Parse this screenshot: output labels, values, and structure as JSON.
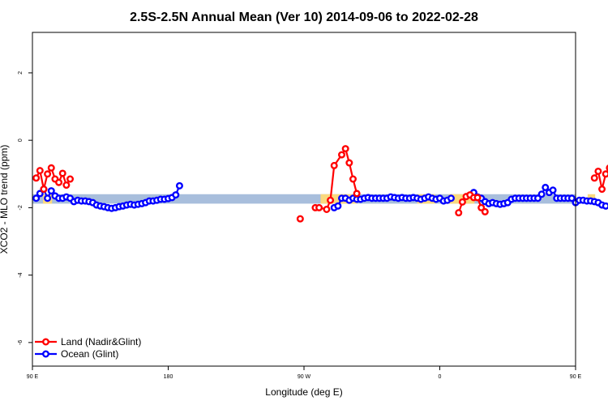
{
  "chart_data": {
    "type": "scatter",
    "title": "2.5S-2.5N Annual Mean (Ver 10)   2014-09-06 to 2022-02-28",
    "xlabel": "Longitude (deg E)",
    "ylabel": "XCO2 - MLO trend (ppm)",
    "xlim": [
      90,
      450
    ],
    "ylim": [
      -6.7,
      3.2
    ],
    "x_ticks": [
      {
        "value": 90,
        "label": "90 E"
      },
      {
        "value": 180,
        "label": "180"
      },
      {
        "value": 270,
        "label": "90 W"
      },
      {
        "value": 360,
        "label": "0"
      },
      {
        "value": 450,
        "label": "90 E"
      },
      {
        "value": 540,
        "label": "180"
      }
    ],
    "y_ticks": [
      {
        "value": 2,
        "label": "2"
      },
      {
        "value": 0,
        "label": "0"
      },
      {
        "value": -2,
        "label": "-2"
      },
      {
        "value": -4,
        "label": "-4"
      },
      {
        "value": -6,
        "label": "-6"
      }
    ],
    "band": {
      "ymin": -1.88,
      "ymax": -1.6,
      "ocean_color": "#a8bedc",
      "land_color": "#fad97e",
      "land_segments": [
        [
          97,
          103
        ],
        [
          281,
          305
        ],
        [
          345,
          357
        ],
        [
          366,
          383
        ],
        [
          458,
          463
        ]
      ]
    },
    "series": [
      {
        "name": "Land (Nadir&Glint)",
        "color": "#ff0000",
        "segments": [
          [
            [
              92.5,
              -1.12
            ],
            [
              95,
              -0.9
            ],
            [
              97.5,
              -1.45
            ],
            [
              100,
              -1.0
            ],
            [
              102.5,
              -0.82
            ],
            [
              105,
              -1.15
            ],
            [
              107.5,
              -1.25
            ],
            [
              110,
              -0.98
            ],
            [
              112.5,
              -1.33
            ],
            [
              115,
              -1.15
            ]
          ],
          [
            [
              267.5,
              -2.33
            ]
          ],
          [
            [
              277.5,
              -2.0
            ],
            [
              280,
              -2.0
            ],
            [
              285,
              -2.05
            ],
            [
              287.5,
              -1.78
            ],
            [
              290,
              -0.75
            ],
            [
              295,
              -0.43
            ],
            [
              297.5,
              -0.25
            ],
            [
              300,
              -0.67
            ],
            [
              302.5,
              -1.15
            ],
            [
              305,
              -1.58
            ]
          ],
          [
            [
              372.5,
              -2.15
            ],
            [
              375,
              -1.83
            ],
            [
              377.5,
              -1.67
            ],
            [
              380,
              -1.62
            ],
            [
              382.5,
              -1.7
            ],
            [
              385,
              -1.7
            ],
            [
              387.5,
              -2.0
            ],
            [
              390,
              -2.12
            ]
          ],
          [
            [
              462.5,
              -1.12
            ],
            [
              465,
              -0.92
            ],
            [
              467.5,
              -1.45
            ],
            [
              470,
              -1.0
            ],
            [
              472.5,
              -0.82
            ],
            [
              475,
              -1.15
            ],
            [
              477.5,
              -1.25
            ],
            [
              480,
              -0.98
            ],
            [
              482.5,
              -1.33
            ],
            [
              485,
              -1.15
            ]
          ]
        ]
      },
      {
        "name": "Ocean (Glint)",
        "color": "#0000ff",
        "segments": [
          [
            [
              92.5,
              -1.72
            ],
            [
              95,
              -1.58
            ],
            [
              97.5,
              -1.45
            ],
            [
              100,
              -1.72
            ],
            [
              102.5,
              -1.5
            ],
            [
              105,
              -1.65
            ],
            [
              107.5,
              -1.72
            ],
            [
              110,
              -1.72
            ],
            [
              112.5,
              -1.68
            ],
            [
              115,
              -1.72
            ],
            [
              117.5,
              -1.82
            ],
            [
              120,
              -1.78
            ],
            [
              122.5,
              -1.8
            ],
            [
              125,
              -1.8
            ],
            [
              127.5,
              -1.82
            ],
            [
              130,
              -1.85
            ],
            [
              132.5,
              -1.92
            ],
            [
              135,
              -1.95
            ],
            [
              137.5,
              -1.97
            ],
            [
              140,
              -2.0
            ],
            [
              142.5,
              -2.02
            ],
            [
              145,
              -2.0
            ],
            [
              147.5,
              -1.97
            ],
            [
              150,
              -1.95
            ],
            [
              152.5,
              -1.92
            ],
            [
              155,
              -1.9
            ],
            [
              157.5,
              -1.92
            ],
            [
              160,
              -1.9
            ],
            [
              162.5,
              -1.88
            ],
            [
              165,
              -1.85
            ],
            [
              167.5,
              -1.8
            ],
            [
              170,
              -1.8
            ],
            [
              172.5,
              -1.78
            ],
            [
              175,
              -1.75
            ],
            [
              177.5,
              -1.75
            ],
            [
              180,
              -1.73
            ],
            [
              182.5,
              -1.7
            ],
            [
              185,
              -1.62
            ],
            [
              187.5,
              -1.35
            ]
          ],
          [
            [
              290,
              -2.0
            ],
            [
              292.5,
              -1.95
            ],
            [
              295,
              -1.72
            ],
            [
              297.5,
              -1.72
            ],
            [
              300,
              -1.78
            ],
            [
              302.5,
              -1.72
            ],
            [
              305,
              -1.75
            ],
            [
              307.5,
              -1.75
            ],
            [
              310,
              -1.72
            ],
            [
              312.5,
              -1.7
            ],
            [
              315,
              -1.72
            ],
            [
              317.5,
              -1.72
            ],
            [
              320,
              -1.72
            ],
            [
              322.5,
              -1.72
            ],
            [
              325,
              -1.72
            ],
            [
              327.5,
              -1.68
            ],
            [
              330,
              -1.7
            ],
            [
              332.5,
              -1.72
            ],
            [
              335,
              -1.7
            ],
            [
              337.5,
              -1.72
            ],
            [
              340,
              -1.72
            ],
            [
              342.5,
              -1.7
            ],
            [
              345,
              -1.72
            ],
            [
              347.5,
              -1.75
            ],
            [
              350,
              -1.72
            ],
            [
              352.5,
              -1.68
            ],
            [
              355,
              -1.72
            ],
            [
              357.5,
              -1.75
            ],
            [
              360,
              -1.72
            ],
            [
              362.5,
              -1.8
            ],
            [
              365,
              -1.78
            ],
            [
              367.5,
              -1.72
            ]
          ],
          [
            [
              382.5,
              -1.55
            ],
            [
              385,
              -1.68
            ],
            [
              387.5,
              -1.72
            ],
            [
              390,
              -1.82
            ],
            [
              392.5,
              -1.88
            ],
            [
              395,
              -1.85
            ],
            [
              397.5,
              -1.88
            ],
            [
              400,
              -1.9
            ],
            [
              402.5,
              -1.88
            ],
            [
              405,
              -1.85
            ],
            [
              407.5,
              -1.75
            ],
            [
              410,
              -1.72
            ],
            [
              412.5,
              -1.72
            ],
            [
              415,
              -1.72
            ],
            [
              417.5,
              -1.72
            ],
            [
              420,
              -1.72
            ],
            [
              422.5,
              -1.72
            ],
            [
              425,
              -1.72
            ],
            [
              427.5,
              -1.6
            ],
            [
              430,
              -1.4
            ],
            [
              432.5,
              -1.55
            ],
            [
              435,
              -1.48
            ],
            [
              437.5,
              -1.72
            ],
            [
              440,
              -1.72
            ],
            [
              442.5,
              -1.72
            ],
            [
              445,
              -1.72
            ],
            [
              447.5,
              -1.72
            ],
            [
              450,
              -1.85
            ],
            [
              452.5,
              -1.78
            ],
            [
              455,
              -1.78
            ],
            [
              457.5,
              -1.8
            ],
            [
              460,
              -1.8
            ],
            [
              462.5,
              -1.82
            ],
            [
              465,
              -1.85
            ],
            [
              467.5,
              -1.92
            ],
            [
              470,
              -1.95
            ]
          ]
        ]
      }
    ],
    "legend": {
      "position": "bottom-left",
      "entries": [
        "Land (Nadir&Glint)",
        "Ocean (Glint)"
      ]
    }
  }
}
